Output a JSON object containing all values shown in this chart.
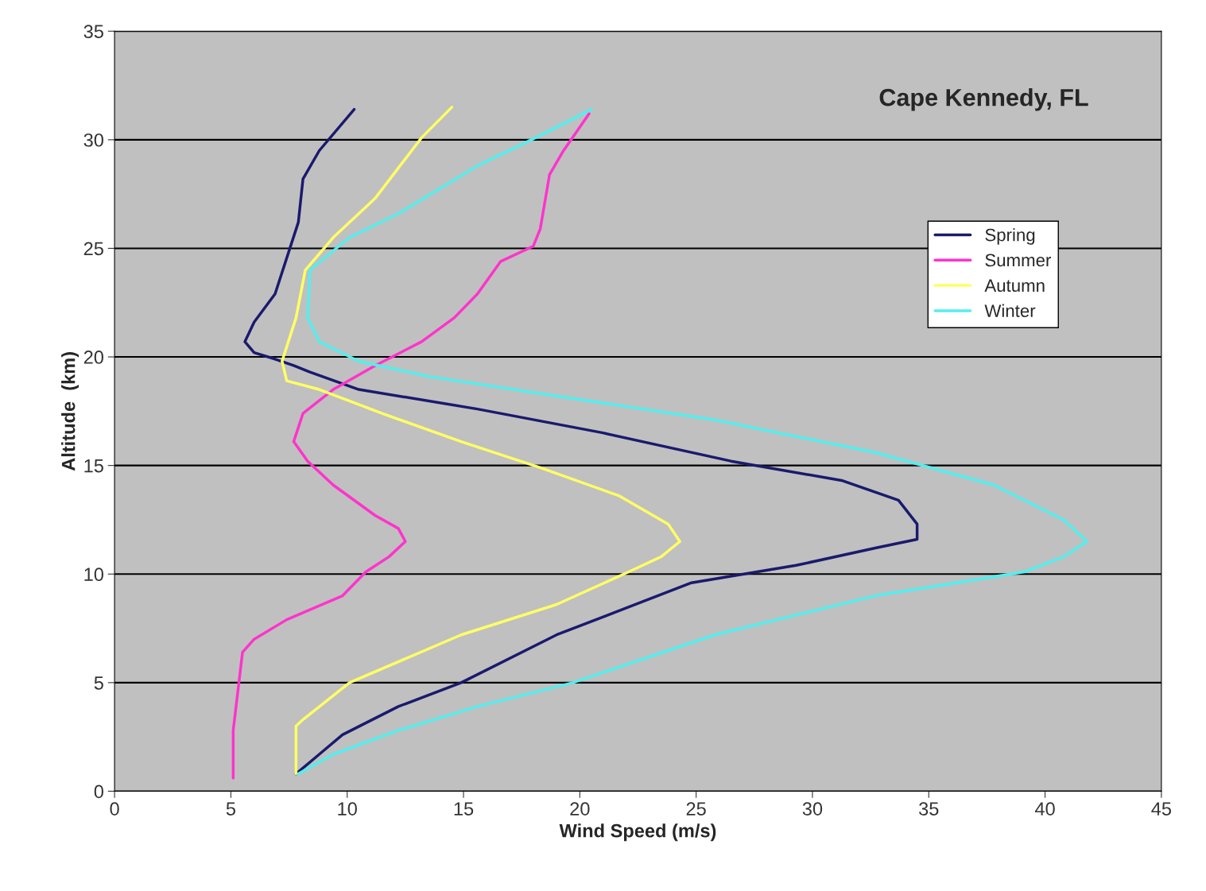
{
  "chart_data": {
    "type": "line",
    "title": "Cape Kennedy, FL",
    "xlabel": "Wind Speed (m/s)",
    "ylabel": "Altitude  (km)",
    "xlim": [
      0,
      45
    ],
    "xticks": [
      0,
      5,
      10,
      15,
      20,
      25,
      30,
      35,
      40,
      45
    ],
    "ylim": [
      0,
      35
    ],
    "yticks": [
      0,
      5,
      10,
      15,
      20,
      25,
      30,
      35
    ],
    "grid": "y",
    "legend": "right",
    "marker": "none",
    "line_style": "solid",
    "series": [
      {
        "name": "Spring",
        "color": "#1a1a6e",
        "x": [
          7.8,
          8.8,
          9.8,
          12.2,
          14.9,
          19.0,
          24.8,
          29.3,
          32.7,
          34.5,
          34.5,
          33.7,
          31.3,
          26.5,
          21.0,
          15.6,
          10.5,
          8.4,
          7.7,
          6.9,
          6.0,
          5.6,
          6.0,
          6.9,
          7.9,
          8.1,
          8.8,
          10.3
        ],
        "values": [
          0.8,
          1.7,
          2.6,
          3.9,
          5.0,
          7.2,
          9.6,
          10.4,
          11.2,
          11.6,
          12.3,
          13.4,
          14.3,
          15.2,
          16.5,
          17.6,
          18.5,
          19.3,
          19.6,
          19.9,
          20.2,
          20.7,
          21.6,
          22.9,
          26.2,
          28.2,
          29.5,
          31.4
        ]
      },
      {
        "name": "Summer",
        "color": "#ff33cc",
        "x": [
          5.1,
          5.1,
          5.5,
          6.0,
          7.4,
          9.8,
          10.8,
          11.8,
          12.5,
          12.2,
          11.2,
          9.4,
          8.3,
          7.7,
          8.1,
          9.4,
          11.2,
          13.2,
          14.6,
          15.6,
          16.6,
          18.0,
          18.3,
          18.7,
          19.3,
          20.4
        ],
        "values": [
          0.6,
          2.8,
          6.4,
          7.0,
          7.9,
          9.0,
          10.1,
          10.8,
          11.5,
          12.1,
          12.7,
          14.1,
          15.2,
          16.1,
          17.4,
          18.5,
          19.6,
          20.7,
          21.8,
          22.9,
          24.4,
          25.1,
          25.9,
          28.4,
          29.5,
          31.2
        ]
      },
      {
        "name": "Autumn",
        "color": "#ffff66",
        "x": [
          7.8,
          7.8,
          8.1,
          10.1,
          14.9,
          19.0,
          22.1,
          23.5,
          24.3,
          23.8,
          21.7,
          18.3,
          14.9,
          11.5,
          8.8,
          7.4,
          7.2,
          7.8,
          8.2,
          9.4,
          11.2,
          13.2,
          14.5
        ],
        "values": [
          0.8,
          3.0,
          3.3,
          5.0,
          7.2,
          8.6,
          10.1,
          10.8,
          11.5,
          12.3,
          13.6,
          14.9,
          16.1,
          17.4,
          18.5,
          18.9,
          19.8,
          21.8,
          24.0,
          25.5,
          27.3,
          30.1,
          31.5
        ]
      },
      {
        "name": "Winter",
        "color": "#55eeee",
        "x": [
          7.9,
          9.4,
          12.2,
          15.6,
          19.7,
          25.8,
          32.7,
          39.1,
          40.8,
          41.8,
          40.8,
          37.8,
          32.7,
          25.8,
          19.0,
          13.5,
          10.5,
          8.8,
          8.3,
          8.4,
          10.1,
          12.2,
          15.6,
          18.3,
          20.5
        ],
        "values": [
          0.8,
          1.7,
          2.8,
          3.9,
          5.0,
          7.2,
          9.0,
          10.1,
          10.8,
          11.5,
          12.5,
          14.1,
          15.6,
          17.1,
          18.2,
          19.1,
          19.8,
          20.7,
          21.8,
          24.0,
          25.5,
          26.6,
          28.8,
          30.2,
          31.4
        ]
      }
    ]
  }
}
